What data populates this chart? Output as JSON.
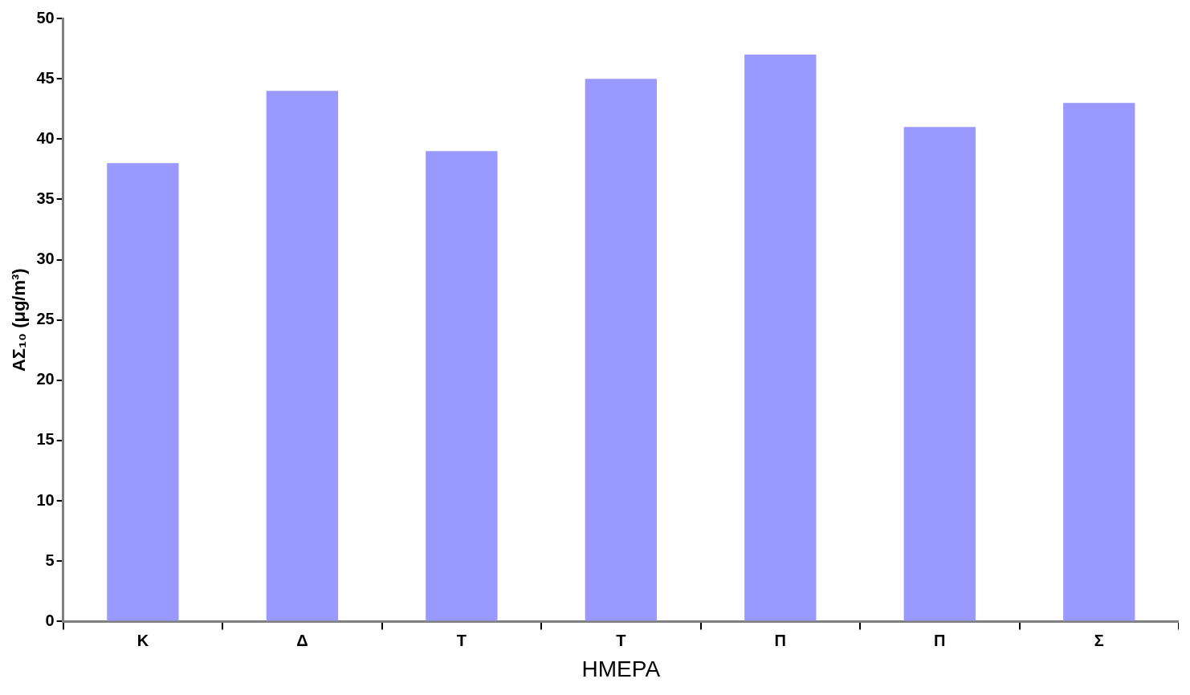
{
  "chart_data": {
    "type": "bar",
    "xlabel": "ΗΜΕΡΑ",
    "ylabel": "ΑΣ₁₀ (μg/m³)",
    "categories": [
      "Κ",
      "Δ",
      "Τ",
      "Τ",
      "Π",
      "Π",
      "Σ"
    ],
    "values": [
      38,
      44,
      39,
      45,
      47,
      41,
      43
    ],
    "color": "#9999ff",
    "ylim": [
      0,
      50
    ],
    "yticks": [
      0,
      5,
      10,
      15,
      20,
      25,
      30,
      35,
      40,
      45,
      50
    ],
    "grid": false,
    "legend": false
  }
}
